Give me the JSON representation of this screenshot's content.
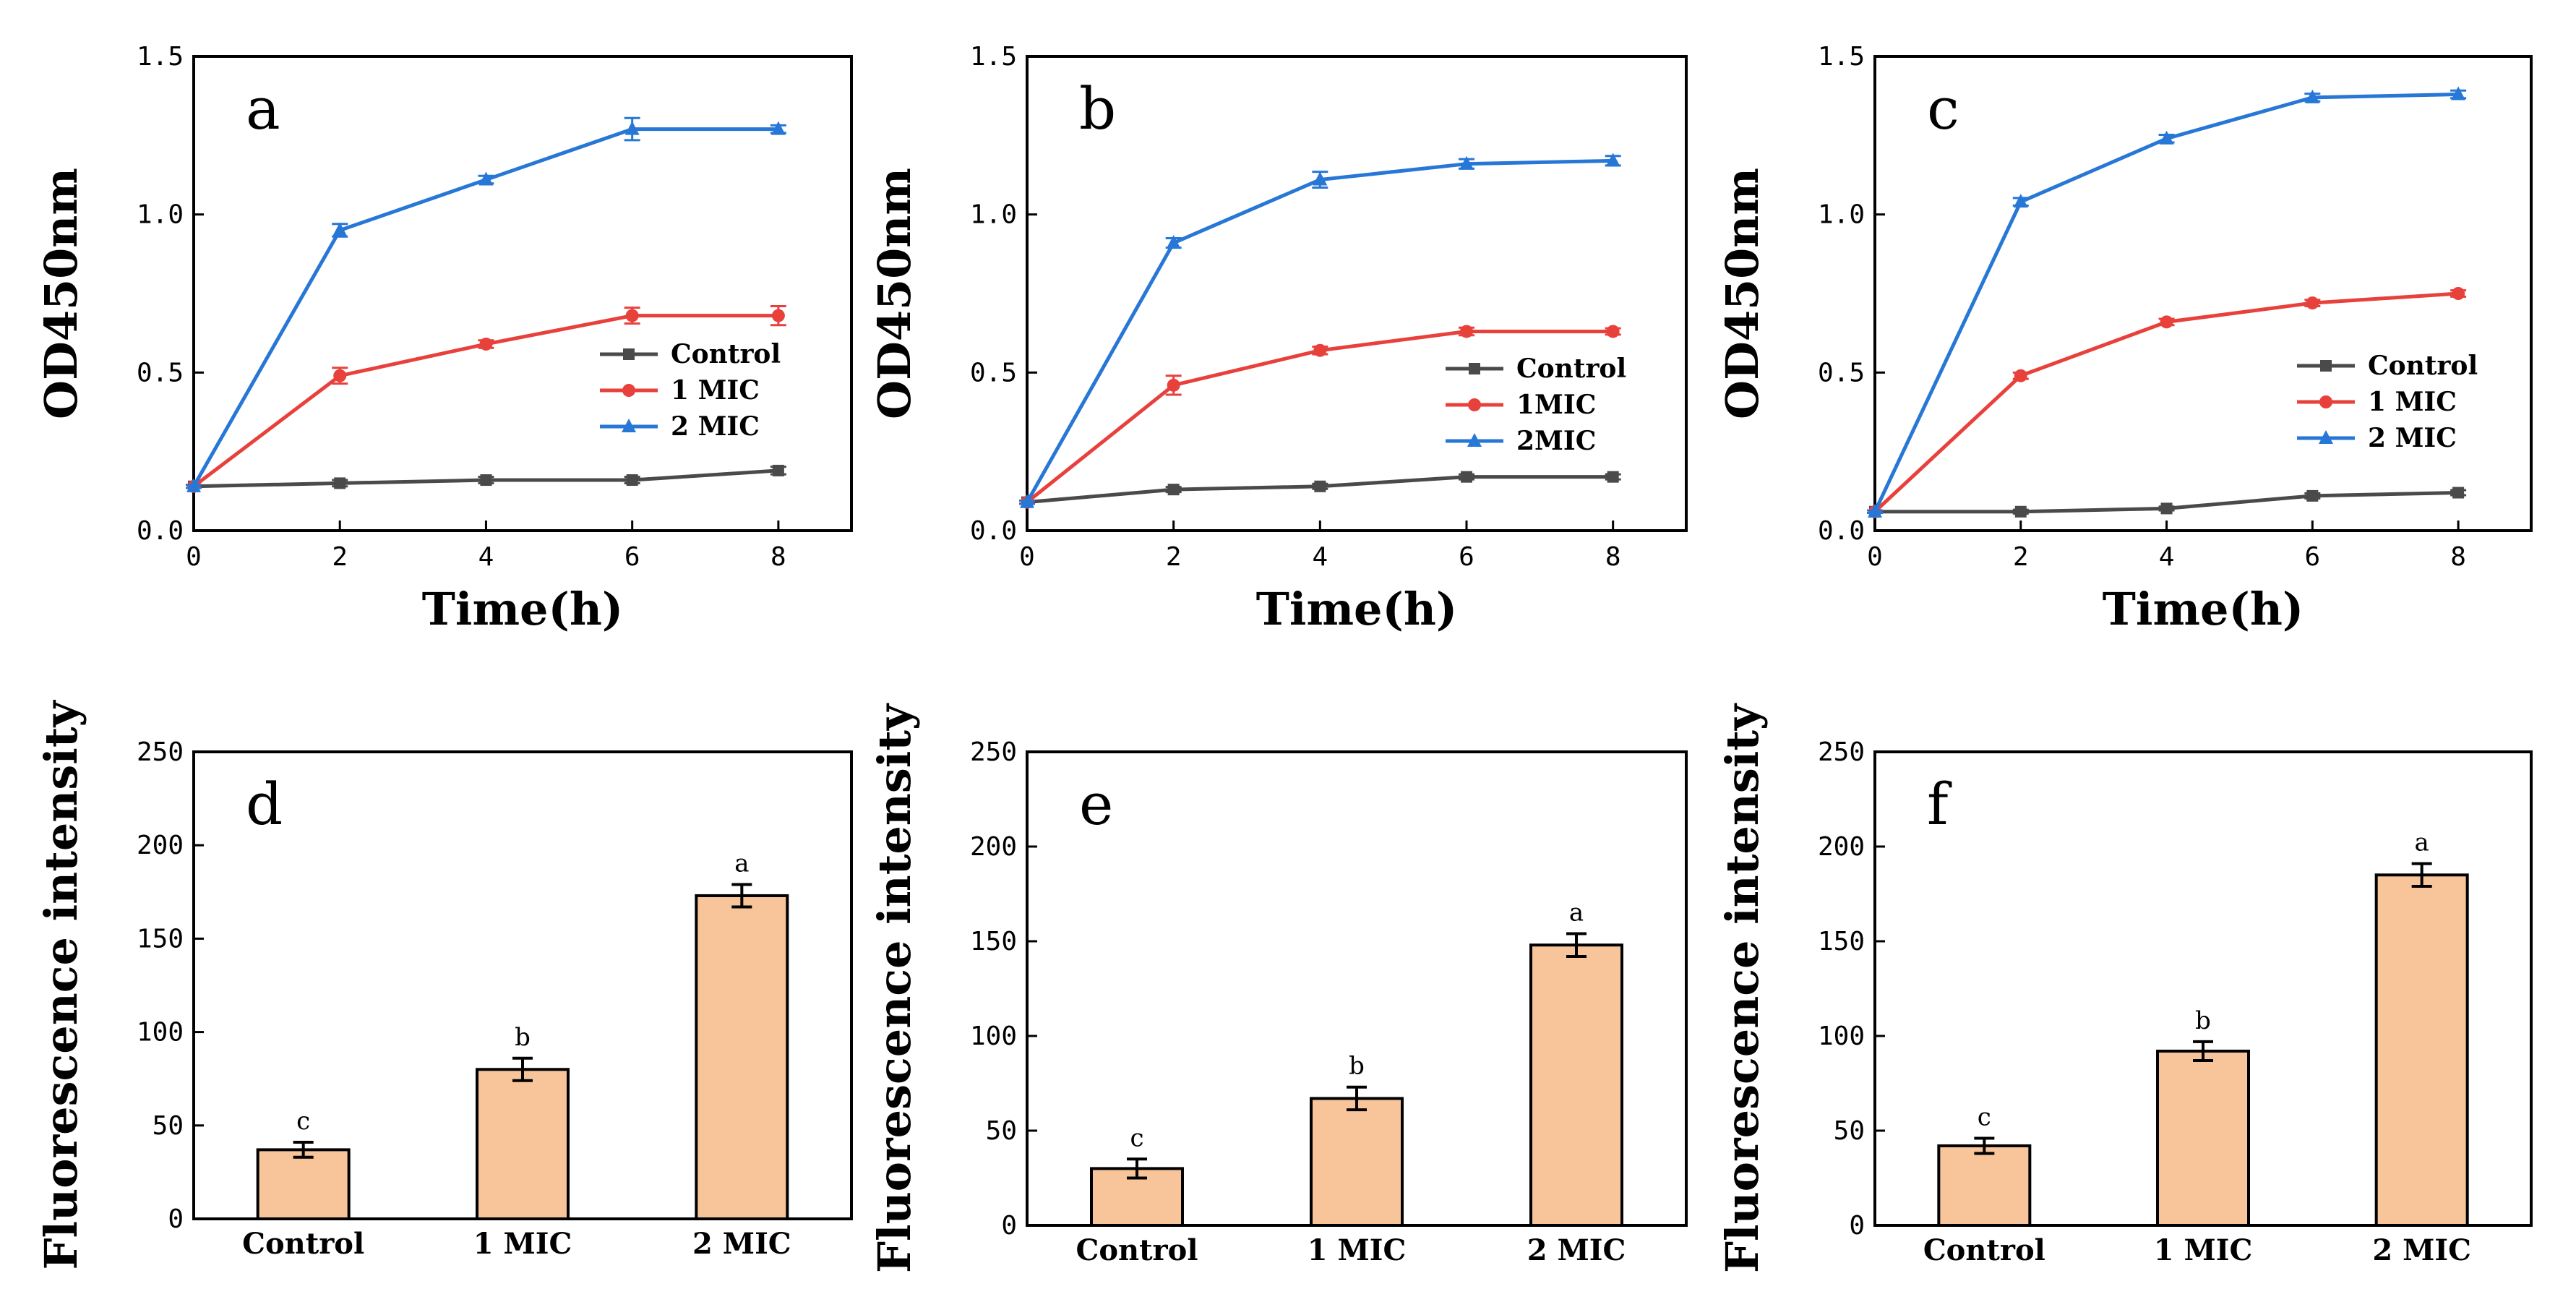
{
  "figure": {
    "background": "#ffffff",
    "series_colors": {
      "Control": "#4a4a4a",
      "1 MIC": "#e8413c",
      "2 MIC": "#2777d6"
    },
    "bar_color": "#f8c499"
  },
  "chart_data": [
    {
      "panel": "a",
      "type": "line",
      "title": "",
      "xlabel": "Time(h)",
      "ylabel": "OD450nm",
      "xlim": [
        0,
        9
      ],
      "ylim": [
        0,
        1.5
      ],
      "xticks": [
        0,
        2,
        4,
        6,
        8
      ],
      "yticks": [
        0,
        0.5,
        1.0,
        1.5
      ],
      "ytick_labels": [
        "0.0",
        "0.5",
        "1.0",
        "1.5"
      ],
      "legend_position": "center-right",
      "x": [
        0,
        2,
        4,
        6,
        8
      ],
      "series": [
        {
          "name": "Control",
          "legend_label": "Control",
          "marker": "square",
          "color": "#4a4a4a",
          "values": [
            0.14,
            0.15,
            0.16,
            0.16,
            0.19
          ],
          "errors": [
            0.005,
            0.01,
            0.01,
            0.01,
            0.012
          ]
        },
        {
          "name": "1 MIC",
          "legend_label": "1 MIC",
          "marker": "circle",
          "color": "#e8413c",
          "values": [
            0.14,
            0.49,
            0.59,
            0.68,
            0.68
          ],
          "errors": [
            0.005,
            0.025,
            0.012,
            0.025,
            0.03
          ]
        },
        {
          "name": "2 MIC",
          "legend_label": "2 MIC",
          "marker": "triangle",
          "color": "#2777d6",
          "values": [
            0.14,
            0.95,
            1.11,
            1.27,
            1.27
          ],
          "errors": [
            0.005,
            0.02,
            0.012,
            0.035,
            0.012
          ]
        }
      ]
    },
    {
      "panel": "b",
      "type": "line",
      "title": "",
      "xlabel": "Time(h)",
      "ylabel": "OD450nm",
      "xlim": [
        0,
        9
      ],
      "ylim": [
        0,
        1.5
      ],
      "xticks": [
        0,
        2,
        4,
        6,
        8
      ],
      "yticks": [
        0,
        0.5,
        1.0,
        1.5
      ],
      "ytick_labels": [
        "0.0",
        "0.5",
        "1.0",
        "1.5"
      ],
      "legend_position": "center-right",
      "x": [
        0,
        2,
        4,
        6,
        8
      ],
      "series": [
        {
          "name": "Control",
          "legend_label": "Control",
          "marker": "square",
          "color": "#4a4a4a",
          "values": [
            0.09,
            0.13,
            0.14,
            0.17,
            0.17
          ],
          "errors": [
            0.005,
            0.008,
            0.008,
            0.008,
            0.008
          ]
        },
        {
          "name": "1 MIC",
          "legend_label": "1MIC",
          "marker": "circle",
          "color": "#e8413c",
          "values": [
            0.09,
            0.46,
            0.57,
            0.63,
            0.63
          ],
          "errors": [
            0.005,
            0.03,
            0.012,
            0.012,
            0.01
          ]
        },
        {
          "name": "2 MIC",
          "legend_label": "2MIC",
          "marker": "triangle",
          "color": "#2777d6",
          "values": [
            0.09,
            0.91,
            1.11,
            1.16,
            1.17
          ],
          "errors": [
            0.005,
            0.015,
            0.025,
            0.015,
            0.015
          ]
        }
      ]
    },
    {
      "panel": "c",
      "type": "line",
      "title": "",
      "xlabel": "Time(h)",
      "ylabel": "OD450nm",
      "xlim": [
        0,
        9
      ],
      "ylim": [
        0,
        1.5
      ],
      "xticks": [
        0,
        2,
        4,
        6,
        8
      ],
      "yticks": [
        0,
        0.5,
        1.0,
        1.5
      ],
      "ytick_labels": [
        "0.0",
        "0.5",
        "1.0",
        "1.5"
      ],
      "legend_position": "center-right",
      "x": [
        0,
        2,
        4,
        6,
        8
      ],
      "series": [
        {
          "name": "Control",
          "legend_label": "Control",
          "marker": "square",
          "color": "#4a4a4a",
          "values": [
            0.06,
            0.06,
            0.07,
            0.11,
            0.12
          ],
          "errors": [
            0.004,
            0.006,
            0.006,
            0.008,
            0.008
          ]
        },
        {
          "name": "1 MIC",
          "legend_label": "1 MIC",
          "marker": "circle",
          "color": "#e8413c",
          "values": [
            0.06,
            0.49,
            0.66,
            0.72,
            0.75
          ],
          "errors": [
            0.004,
            0.01,
            0.01,
            0.01,
            0.01
          ]
        },
        {
          "name": "2 MIC",
          "legend_label": "2 MIC",
          "marker": "triangle",
          "color": "#2777d6",
          "values": [
            0.06,
            1.04,
            1.24,
            1.37,
            1.38
          ],
          "errors": [
            0.004,
            0.012,
            0.012,
            0.012,
            0.012
          ]
        }
      ]
    },
    {
      "panel": "d",
      "type": "bar",
      "title": "",
      "xlabel": "",
      "ylabel": "Fluorescence intensity",
      "ylim": [
        0,
        250
      ],
      "yticks": [
        0,
        50,
        100,
        150,
        200,
        250
      ],
      "ytick_labels": [
        "0",
        "50",
        "100",
        "150",
        "200",
        "250"
      ],
      "categories": [
        "Control",
        "1 MIC",
        "2 MIC"
      ],
      "values": [
        37,
        80,
        173
      ],
      "errors": [
        4,
        6,
        6
      ],
      "significance": [
        "c",
        "b",
        "a"
      ]
    },
    {
      "panel": "e",
      "type": "bar",
      "title": "",
      "xlabel": "",
      "ylabel": "Fluorescence intensity",
      "ylim": [
        0,
        250
      ],
      "yticks": [
        0,
        50,
        100,
        150,
        200,
        250
      ],
      "ytick_labels": [
        "0",
        "50",
        "100",
        "150",
        "200",
        "250"
      ],
      "categories": [
        "Control",
        "1 MIC",
        "2 MIC"
      ],
      "values": [
        30,
        67,
        148
      ],
      "errors": [
        5,
        6,
        6
      ],
      "significance": [
        "c",
        "b",
        "a"
      ]
    },
    {
      "panel": "f",
      "type": "bar",
      "title": "",
      "xlabel": "",
      "ylabel": "Fluorescence intensity",
      "ylim": [
        0,
        250
      ],
      "yticks": [
        0,
        50,
        100,
        150,
        200,
        250
      ],
      "ytick_labels": [
        "0",
        "50",
        "100",
        "150",
        "200",
        "250"
      ],
      "categories": [
        "Control",
        "1 MIC",
        "2 MIC"
      ],
      "values": [
        42,
        92,
        185
      ],
      "errors": [
        4,
        5,
        6
      ],
      "significance": [
        "c",
        "b",
        "a"
      ]
    }
  ]
}
